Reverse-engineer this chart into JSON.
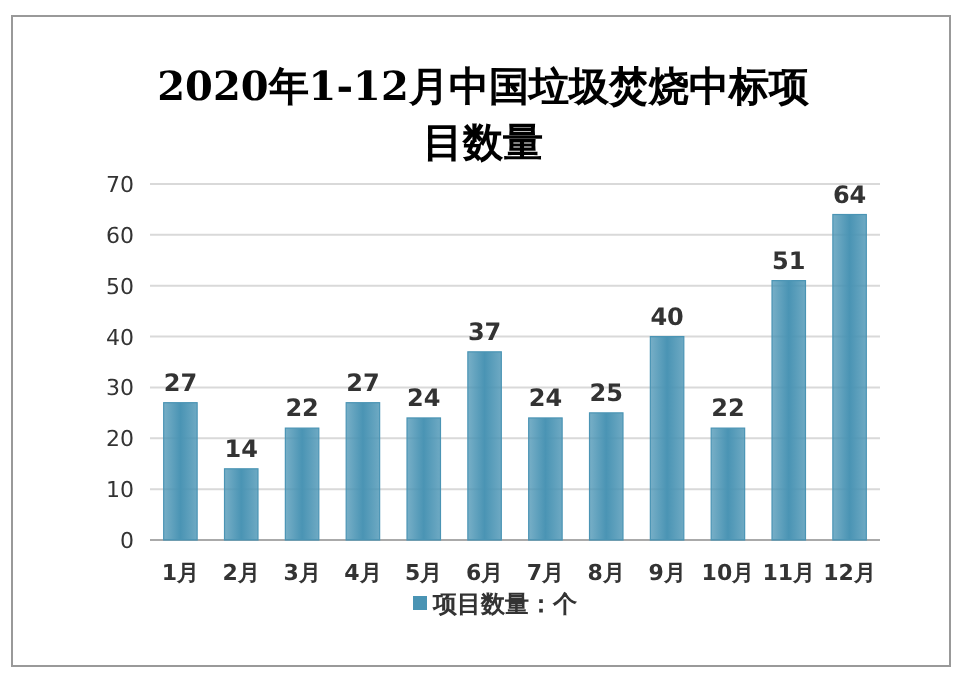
{
  "chart_data": {
    "type": "bar",
    "title": "2020年1-12月中国垃圾焚烧中标项目数量",
    "categories": [
      "1月",
      "2月",
      "3月",
      "4月",
      "5月",
      "6月",
      "7月",
      "8月",
      "9月",
      "10月",
      "11月",
      "12月"
    ],
    "series": [
      {
        "name": "项目数量：个",
        "color": "#4a94b4",
        "values": [
          27,
          14,
          22,
          27,
          24,
          37,
          24,
          25,
          40,
          22,
          51,
          64
        ]
      }
    ],
    "ylim": [
      0,
      70
    ],
    "yticks": [
      0,
      10,
      20,
      30,
      40,
      50,
      60,
      70
    ],
    "grid": "y",
    "data_labels": true,
    "legend": "bottom"
  }
}
